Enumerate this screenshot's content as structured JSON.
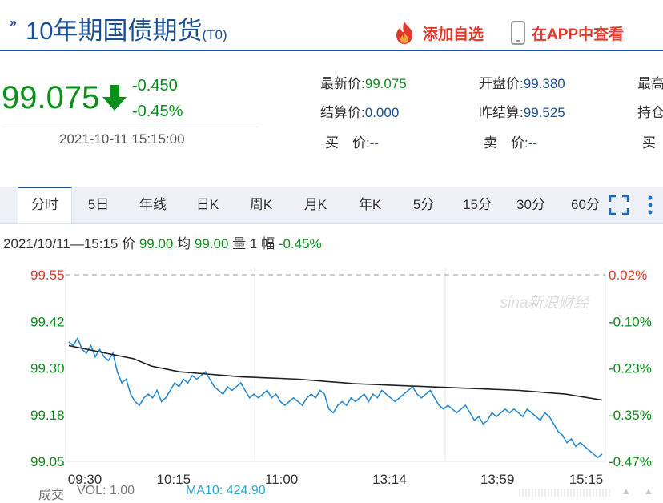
{
  "header": {
    "arrow": "»",
    "title": "10年期国债期货",
    "subtitle": "(T0)",
    "add_watchlist": "添加自选",
    "open_app": "在APP中查看"
  },
  "price": {
    "last": "99.075",
    "change": "-0.450",
    "change_pct": "-0.45%",
    "timestamp": "2021-10-11 15:15:00"
  },
  "quote": {
    "row1": [
      {
        "label": "最新价:",
        "value": "99.075"
      },
      {
        "label": "开盘价:",
        "value": "99.380"
      },
      {
        "label": "最高"
      }
    ],
    "row2": [
      {
        "label": "结算价:",
        "value": "0.000"
      },
      {
        "label": "昨结算:",
        "value": "99.525"
      },
      {
        "label": "持仓"
      }
    ],
    "row3": [
      {
        "label": "买　价:",
        "value": "--"
      },
      {
        "label": "卖　价:",
        "value": "--"
      },
      {
        "label": "买"
      }
    ]
  },
  "tabs": [
    "分时",
    "5日",
    "年线",
    "日K",
    "周K",
    "月K",
    "年K",
    "5分",
    "15分",
    "30分",
    "60分"
  ],
  "tab_active": 0,
  "info_bar": {
    "time": "2021/10/11—15:15",
    "price_label": "价",
    "price": "99.00",
    "avg_label": "均",
    "avg": "99.00",
    "vol_label": "量",
    "vol": "1",
    "amp_label": "幅",
    "amp": "-0.45%"
  },
  "footer": {
    "label": "成交",
    "vol": "VOL: 1.00",
    "ma": "MA10: 424.90"
  },
  "colors": {
    "brand": "#1b4f93",
    "up": "#e03a2c",
    "down": "#0b8f1b",
    "price_line": "#2a8ad0",
    "avg_line": "#222222",
    "ma_text": "#2aa6c8"
  },
  "chart_data": {
    "type": "line",
    "x_ticks": [
      "09:30",
      "10:15",
      "11:00",
      "13:14",
      "13:59",
      "15:15"
    ],
    "y_ticks_left": [
      "99.55",
      "99.42",
      "99.30",
      "99.18",
      "99.05"
    ],
    "y_ticks_right": [
      "0.02%",
      "-0.10%",
      "-0.23%",
      "-0.35%",
      "-0.47%"
    ],
    "ylim": [
      99.05,
      99.55
    ],
    "reference_price": 99.525,
    "watermark": "sina新浪财经",
    "series": [
      {
        "values": [
          99.37,
          99.36,
          99.38,
          99.35,
          99.34,
          99.36,
          99.33,
          99.35,
          99.33,
          99.32,
          99.34,
          99.29,
          99.26,
          99.27,
          99.23,
          99.21,
          99.2,
          99.22,
          99.23,
          99.22,
          99.24,
          99.21,
          99.22,
          99.24,
          99.26,
          99.25,
          99.27,
          99.26,
          99.28,
          99.27,
          99.28,
          99.29,
          99.27,
          99.25,
          99.24,
          99.23,
          99.25,
          99.24,
          99.25,
          99.26,
          99.24,
          99.22,
          99.23,
          99.22,
          99.23,
          99.24,
          99.22,
          99.23,
          99.21,
          99.2,
          99.21,
          99.22,
          99.21,
          99.2,
          99.22,
          99.23,
          99.22,
          99.24,
          99.23,
          99.19,
          99.18,
          99.2,
          99.21,
          99.2,
          99.22,
          99.21,
          99.22,
          99.23,
          99.21,
          99.23,
          99.22,
          99.24,
          99.23,
          99.22,
          99.21,
          99.22,
          99.23,
          99.24,
          99.25,
          99.23,
          99.22,
          99.23,
          99.24,
          99.22,
          99.2,
          99.19,
          99.2,
          99.19,
          99.18,
          99.19,
          99.2,
          99.18,
          99.16,
          99.17,
          99.15,
          99.16,
          99.18,
          99.17,
          99.18,
          99.19,
          99.18,
          99.19,
          99.18,
          99.17,
          99.19,
          99.18,
          99.17,
          99.16,
          99.18,
          99.17,
          99.15,
          99.13,
          99.12,
          99.1,
          99.11,
          99.09,
          99.1,
          99.09,
          99.08,
          99.07,
          99.06,
          99.07
        ]
      },
      {
        "values": [
          99.36,
          99.355,
          99.35,
          99.345,
          99.34,
          99.335,
          99.33,
          99.325,
          99.315,
          99.305,
          99.3,
          99.295,
          99.29,
          99.288,
          99.286,
          99.284,
          99.282,
          99.28,
          99.278,
          99.276,
          99.275,
          99.274,
          99.273,
          99.272,
          99.271,
          99.27,
          99.268,
          99.266,
          99.264,
          99.262,
          99.26,
          99.258,
          99.257,
          99.256,
          99.255,
          99.254,
          99.253,
          99.252,
          99.251,
          99.25,
          99.249,
          99.248,
          99.247,
          99.246,
          99.245,
          99.244,
          99.243,
          99.242,
          99.241,
          99.24,
          99.238,
          99.236,
          99.234,
          99.232,
          99.23,
          99.226,
          99.222,
          99.218,
          99.214
        ]
      }
    ]
  }
}
